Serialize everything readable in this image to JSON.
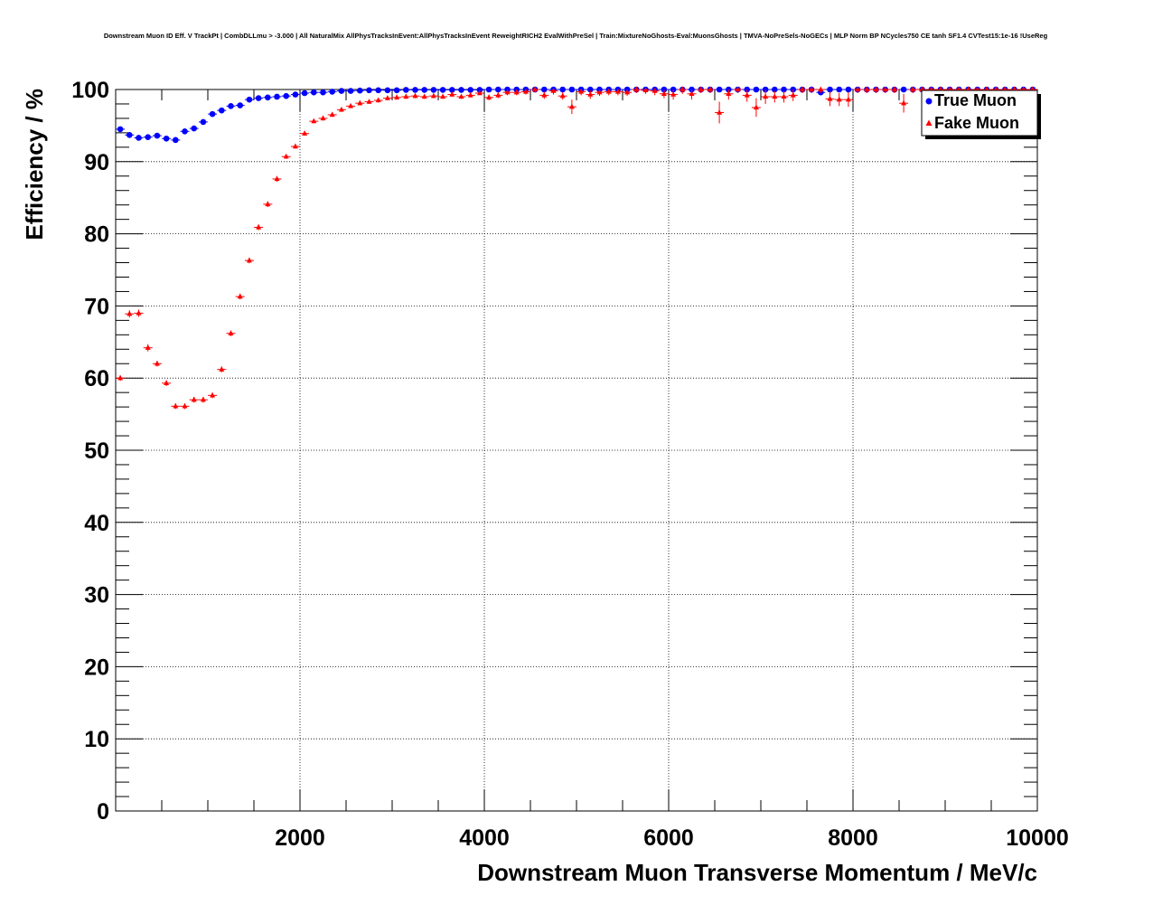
{
  "chart_data": {
    "type": "scatter",
    "title": "Downstream Muon ID Eff. V TrackPt | CombDLLmu > -3.000 | All NaturalMix AllPhysTracksInEvent:AllPhysTracksInEvent ReweightRICH2 EvalWithPreSel | Train:MixtureNoGhosts-Eval:MuonsGhosts | TMVA-NoPreSels-NoGECs | MLP Norm BP NCycles750 CE tanh SF1.4 CVTest15:1e-16 !UseReg",
    "xlabel": "Downstream Muon Transverse Momentum / MeV/c",
    "ylabel": "Efficiency / %",
    "xlim": [
      0,
      10000
    ],
    "ylim": [
      0,
      100
    ],
    "grid": true,
    "legend_position": "top-right",
    "x_ticks": [
      "2000",
      "4000",
      "6000",
      "8000",
      "10000"
    ],
    "y_ticks": [
      "0",
      "10",
      "20",
      "30",
      "40",
      "50",
      "60",
      "70",
      "80",
      "90",
      "100"
    ],
    "series": [
      {
        "name": "True Muon",
        "color": "#0000ff",
        "marker": "circle",
        "x": [
          50,
          150,
          250,
          350,
          450,
          550,
          650,
          750,
          850,
          950,
          1050,
          1150,
          1250,
          1350,
          1450,
          1550,
          1650,
          1750,
          1850,
          1950,
          2050,
          2150,
          2250,
          2350,
          2450,
          2550,
          2650,
          2750,
          2850,
          2950,
          3050,
          3150,
          3250,
          3350,
          3450,
          3550,
          3650,
          3750,
          3850,
          3950,
          4050,
          4150,
          4250,
          4350,
          4450,
          4550,
          4650,
          4750,
          4850,
          4950,
          5050,
          5150,
          5250,
          5350,
          5450,
          5550,
          5650,
          5750,
          5850,
          5950,
          6050,
          6150,
          6250,
          6350,
          6450,
          6550,
          6650,
          6750,
          6850,
          6950,
          7050,
          7150,
          7250,
          7350,
          7450,
          7550,
          7650,
          7750,
          7850,
          7950,
          8050,
          8150,
          8250,
          8350,
          8450,
          8550,
          8650,
          8750,
          8850,
          8950,
          9050,
          9150,
          9250,
          9350,
          9450,
          9550,
          9650,
          9750,
          9850,
          9950
        ],
        "y": [
          94.5,
          93.7,
          93.3,
          93.4,
          93.6,
          93.2,
          93.0,
          94.2,
          94.6,
          95.5,
          96.6,
          97.1,
          97.7,
          97.8,
          98.6,
          98.8,
          98.9,
          99.0,
          99.1,
          99.3,
          99.5,
          99.6,
          99.6,
          99.7,
          99.8,
          99.8,
          99.85,
          99.9,
          99.9,
          99.9,
          99.9,
          99.95,
          99.95,
          99.95,
          99.95,
          99.95,
          99.95,
          99.95,
          99.95,
          99.95,
          100,
          100,
          100,
          100,
          100,
          100,
          100,
          100,
          100,
          100,
          100,
          100,
          100,
          100,
          100,
          100,
          100,
          100,
          100,
          100,
          100,
          100,
          100,
          100,
          100,
          100,
          100,
          100,
          100,
          100,
          100,
          100,
          100,
          100,
          100,
          100,
          99.6,
          100,
          100,
          100,
          100,
          100,
          100,
          100,
          100,
          100,
          100,
          100,
          100,
          100,
          100,
          100,
          100,
          100,
          100,
          100,
          100,
          100,
          100,
          100
        ]
      },
      {
        "name": "Fake Muon",
        "color": "#ff0000",
        "marker": "triangle",
        "x": [
          50,
          150,
          250,
          350,
          450,
          550,
          650,
          750,
          850,
          950,
          1050,
          1150,
          1250,
          1350,
          1450,
          1550,
          1650,
          1750,
          1850,
          1950,
          2050,
          2150,
          2250,
          2350,
          2450,
          2550,
          2650,
          2750,
          2850,
          2950,
          3050,
          3150,
          3250,
          3350,
          3450,
          3550,
          3650,
          3750,
          3850,
          3950,
          4050,
          4150,
          4250,
          4350,
          4450,
          4550,
          4650,
          4750,
          4850,
          4950,
          5050,
          5150,
          5250,
          5350,
          5450,
          5550,
          5650,
          5750,
          5850,
          5950,
          6050,
          6150,
          6250,
          6350,
          6450,
          6550,
          6650,
          6750,
          6850,
          6950,
          7050,
          7150,
          7250,
          7350,
          7450,
          7550,
          7650,
          7750,
          7850,
          7950,
          8050,
          8150,
          8250,
          8350,
          8450,
          8550,
          8650,
          8750,
          8850,
          8950,
          9050,
          9150,
          9250,
          9350,
          9450,
          9550,
          9650,
          9750,
          9850,
          9950
        ],
        "y": [
          60.0,
          68.9,
          69.0,
          64.2,
          62.0,
          59.3,
          56.1,
          56.1,
          57.0,
          57.0,
          57.6,
          61.2,
          66.2,
          71.3,
          76.3,
          80.9,
          84.1,
          87.6,
          90.7,
          92.1,
          93.9,
          95.6,
          96.0,
          96.5,
          97.2,
          97.7,
          98.1,
          98.3,
          98.5,
          98.8,
          98.9,
          99.0,
          99.1,
          99.0,
          99.1,
          99.0,
          99.3,
          99.0,
          99.2,
          99.5,
          98.9,
          99.2,
          99.6,
          99.6,
          99.7,
          100,
          99.2,
          99.8,
          99.1,
          97.6,
          99.7,
          99.3,
          99.6,
          99.7,
          99.7,
          99.6,
          100,
          99.9,
          99.8,
          99.4,
          99.3,
          100,
          99.4,
          100,
          100,
          96.8,
          99.4,
          100,
          99.2,
          97.5,
          99.0,
          99.0,
          99.0,
          99.2,
          100,
          100,
          100,
          98.7,
          98.6,
          98.6,
          100,
          100,
          100,
          100,
          100,
          98.1,
          100,
          100,
          100,
          100,
          100,
          100,
          100,
          100,
          100,
          100,
          100,
          100,
          100,
          100
        ],
        "yerr": [
          0.4,
          0.5,
          0.5,
          0.5,
          0.4,
          0.4,
          0.4,
          0.4,
          0.4,
          0.4,
          0.4,
          0.4,
          0.4,
          0.4,
          0.4,
          0.4,
          0.4,
          0.4,
          0.3,
          0.3,
          0.3,
          0.3,
          0.3,
          0.3,
          0.3,
          0.3,
          0.3,
          0.3,
          0.3,
          0.3,
          0.3,
          0.3,
          0.3,
          0.3,
          0.3,
          0.3,
          0.3,
          0.3,
          0.3,
          0.3,
          0.4,
          0.4,
          0.4,
          0.4,
          0.4,
          0.4,
          0.5,
          0.5,
          0.5,
          1.0,
          0.5,
          0.6,
          0.5,
          0.5,
          0.5,
          0.5,
          0.5,
          0.5,
          0.6,
          0.6,
          0.7,
          0.6,
          0.8,
          0.5,
          0.5,
          1.5,
          0.8,
          0.5,
          0.9,
          1.3,
          1.0,
          0.8,
          0.8,
          0.8,
          0.5,
          0.5,
          0.5,
          1.0,
          0.9,
          1.0,
          0.5,
          0.5,
          0.5,
          0.5,
          0.5,
          1.3,
          0.5,
          0.5,
          0.5,
          0.5,
          0.5,
          0.5,
          0.5,
          0.5,
          0.5,
          0.5,
          0.5,
          0.5,
          0.5,
          0.5
        ]
      }
    ]
  }
}
